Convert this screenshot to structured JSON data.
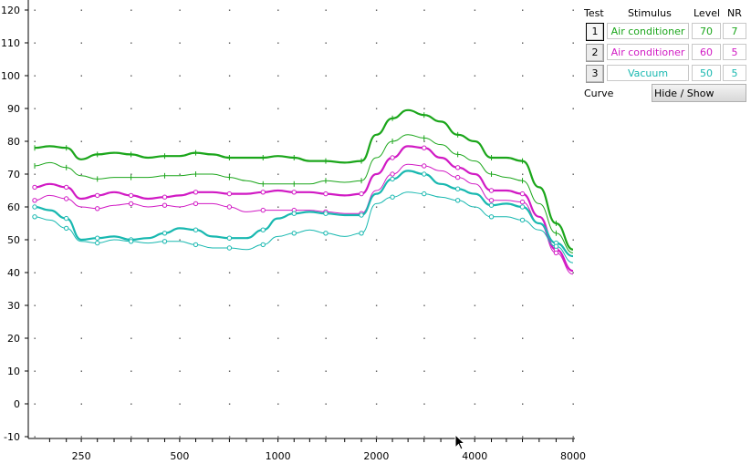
{
  "chart_data": {
    "type": "line",
    "x_scale": "log",
    "xlim": [
      180,
      8000
    ],
    "ylim": [
      -10,
      120
    ],
    "yticks": [
      -10,
      0,
      10,
      20,
      30,
      40,
      50,
      60,
      70,
      80,
      90,
      100,
      110,
      120
    ],
    "xticks": [
      250,
      500,
      1000,
      2000,
      4000,
      8000
    ],
    "grid": "dotted points",
    "x": [
      180,
      200,
      225,
      250,
      280,
      315,
      355,
      400,
      450,
      500,
      560,
      630,
      710,
      800,
      900,
      1000,
      1120,
      1250,
      1400,
      1600,
      1800,
      2000,
      2240,
      2500,
      2800,
      3150,
      3550,
      4000,
      4500,
      5000,
      5600,
      6300,
      7100,
      8000
    ],
    "series": [
      {
        "color": "#1ba61b",
        "bold": true,
        "values": [
          78,
          78.5,
          78,
          74.5,
          76,
          76.5,
          76,
          75,
          75.5,
          75.5,
          76.5,
          76,
          75,
          75,
          75,
          75.5,
          75,
          74,
          74,
          73.5,
          74,
          82,
          87,
          89.5,
          88,
          86,
          82,
          80,
          75,
          75,
          74,
          66,
          55,
          47
        ]
      },
      {
        "color": "#1ba61b",
        "bold": false,
        "values": [
          72.5,
          73.5,
          72,
          69.5,
          68.5,
          69,
          69,
          69,
          69.5,
          69.5,
          70,
          70,
          69,
          68,
          67,
          67,
          67,
          67,
          68,
          67.5,
          68,
          75,
          80,
          82,
          81,
          79,
          76,
          74,
          70,
          69,
          68,
          61,
          52,
          46
        ]
      },
      {
        "color": "#d11ac4",
        "bold": true,
        "values": [
          66,
          67,
          66,
          62.5,
          63.5,
          64.5,
          63.5,
          62.5,
          63,
          63.5,
          64.5,
          64.5,
          64,
          64,
          64.5,
          65,
          64.5,
          64.5,
          64,
          63.5,
          64,
          70,
          75,
          78.5,
          78,
          75,
          72,
          70,
          65,
          65,
          64,
          57,
          47,
          40.5
        ]
      },
      {
        "color": "#d11ac4",
        "bold": false,
        "values": [
          62,
          63.5,
          62.5,
          60,
          59.5,
          60.5,
          61,
          60,
          60.5,
          60,
          61,
          61,
          60,
          58.5,
          59,
          59,
          59,
          59,
          58.5,
          58,
          58,
          65,
          70,
          73,
          72.5,
          71,
          69,
          67,
          62,
          62,
          61.5,
          55,
          46,
          39.5
        ]
      },
      {
        "color": "#18b8b0",
        "bold": true,
        "values": [
          60,
          59,
          56.5,
          50,
          50.5,
          51,
          50,
          50.5,
          52,
          53.5,
          53,
          51,
          50.5,
          50.5,
          53,
          56.5,
          58,
          58.5,
          58,
          57.5,
          57.5,
          64,
          68.5,
          71,
          70,
          67,
          65.5,
          64,
          60.5,
          61,
          60,
          55,
          49,
          45
        ]
      },
      {
        "color": "#18b8b0",
        "bold": false,
        "values": [
          57,
          56,
          53.5,
          49.5,
          49,
          50,
          49.5,
          49,
          49.5,
          49.5,
          48.5,
          47.5,
          47.5,
          47,
          48.5,
          51,
          52,
          53,
          52,
          51,
          52,
          61,
          63,
          64.5,
          64,
          63,
          62,
          60,
          57,
          57,
          56,
          53,
          48,
          43
        ]
      }
    ]
  },
  "panel": {
    "headers": {
      "test": "Test",
      "stimulus": "Stimulus",
      "level": "Level",
      "nr": "NR"
    },
    "rows": [
      {
        "test": "1",
        "stimulus": "Air conditioner",
        "level": "70",
        "nr": "7",
        "color": "#1ba61b"
      },
      {
        "test": "2",
        "stimulus": "Air conditioner",
        "level": "60",
        "nr": "5",
        "color": "#d11ac4"
      },
      {
        "test": "3",
        "stimulus": "Vacuum",
        "level": "50",
        "nr": "5",
        "color": "#18b8b0"
      }
    ],
    "curve_label": "Curve",
    "hide_show": "Hide / Show"
  },
  "cursor_icon": "arrow-cursor-icon"
}
